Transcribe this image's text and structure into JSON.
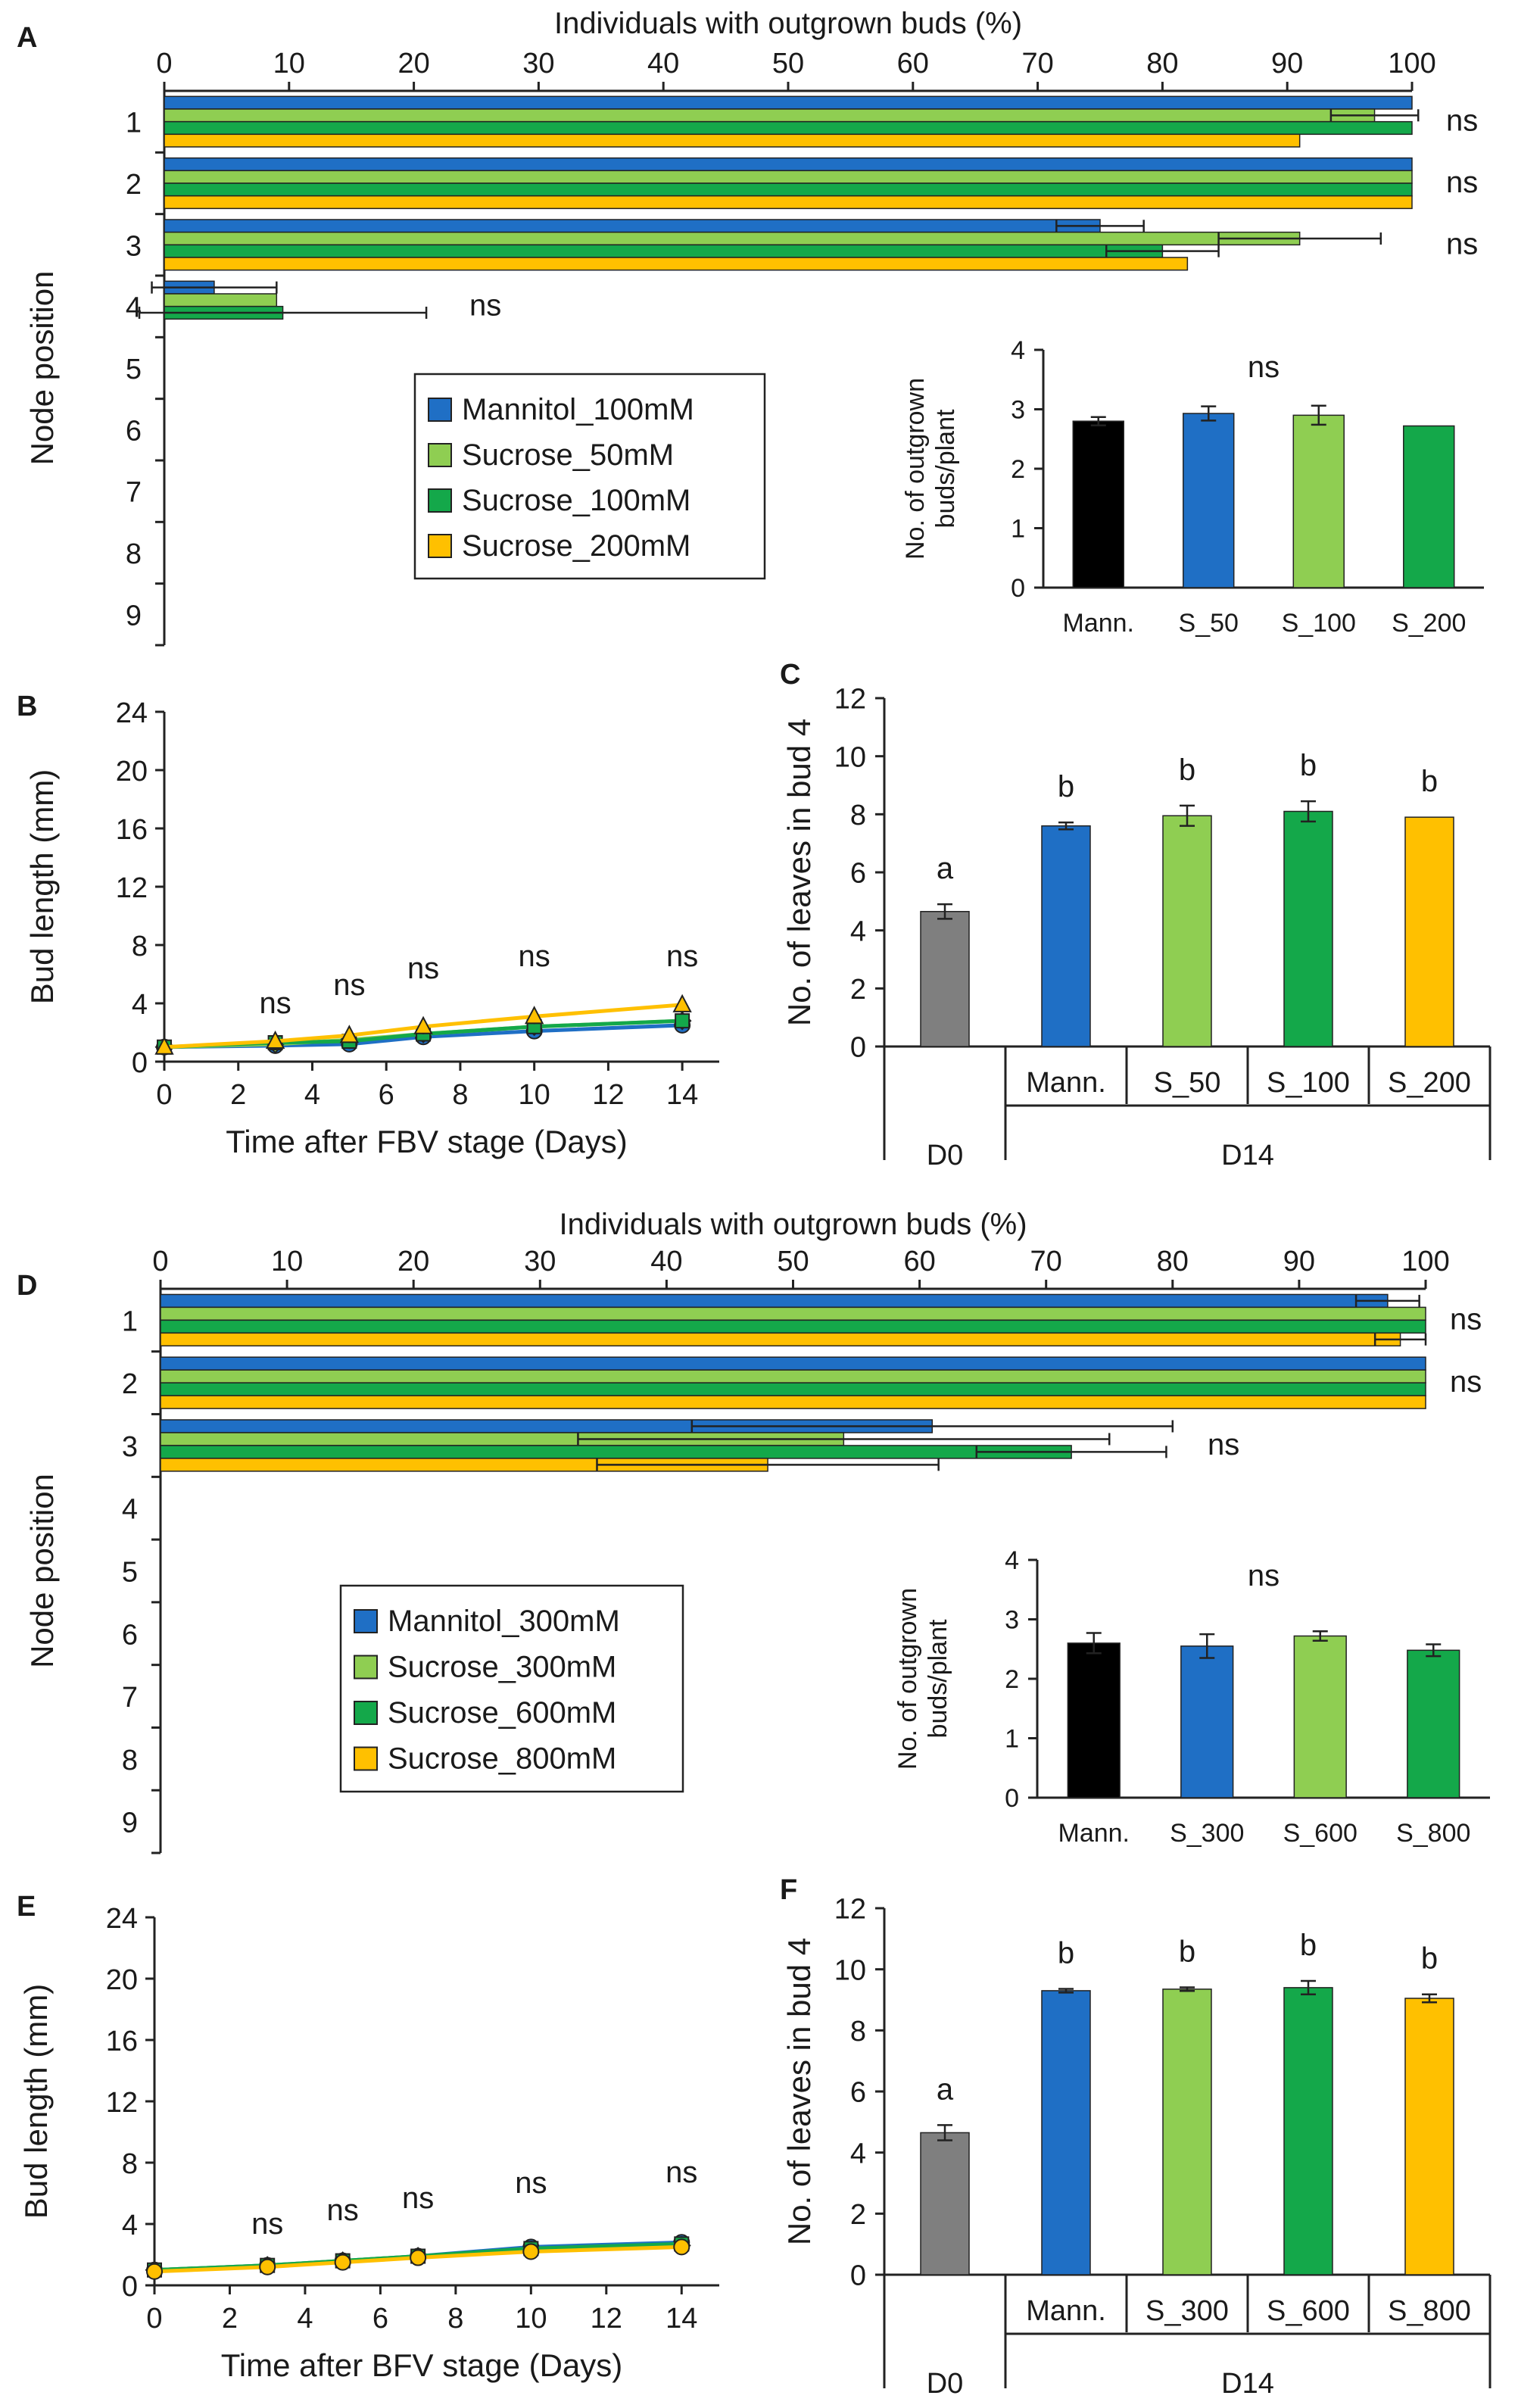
{
  "figure": {
    "panel_labels": [
      "A",
      "B",
      "C",
      "D",
      "E",
      "F"
    ]
  },
  "colors": {
    "Mannitol": "#1f6fc5",
    "Sucrose_low": "#8fce52",
    "Sucrose_mid": "#14a84a",
    "Sucrose_high": "#ffc000",
    "D0": "#7f7f7f",
    "axis": "#222222"
  },
  "chart_data": [
    {
      "id": "A",
      "type": "bar",
      "orientation": "horizontal",
      "title": "Individuals with outgrown buds (%)",
      "xlabel": "Individuals with outgrown buds (%)",
      "ylabel": "Node position",
      "xlim": [
        0,
        100
      ],
      "xticks": [
        "0",
        "10",
        "20",
        "30",
        "40",
        "50",
        "60",
        "70",
        "80",
        "90",
        "100"
      ],
      "categories": [
        "1",
        "2",
        "3",
        "4",
        "5",
        "6",
        "7",
        "8",
        "9"
      ],
      "series": [
        {
          "name": "Mannitol_100mM",
          "values": [
            100,
            100,
            75,
            4,
            0,
            0,
            0,
            0,
            0
          ],
          "errors": [
            0,
            0,
            3.5,
            5,
            0,
            0,
            0,
            0,
            0
          ]
        },
        {
          "name": "Sucrose_50mM",
          "values": [
            97,
            100,
            91,
            9,
            0,
            0,
            0,
            0,
            0
          ],
          "errors": [
            3.5,
            0,
            6.5,
            0,
            0,
            0,
            0,
            0,
            0
          ]
        },
        {
          "name": "Sucrose_100mM",
          "values": [
            100,
            100,
            80,
            9.5,
            0,
            0,
            0,
            0,
            0
          ],
          "errors": [
            0,
            0,
            4.5,
            11.5,
            0,
            0,
            0,
            0,
            0
          ]
        },
        {
          "name": "Sucrose_200mM",
          "values": [
            91,
            100,
            82,
            0,
            0,
            0,
            0,
            0,
            0
          ],
          "errors": [
            0,
            0,
            0,
            0,
            0,
            0,
            0,
            0,
            0
          ]
        }
      ],
      "annotations": [
        {
          "category": "1",
          "text": "ns"
        },
        {
          "category": "2",
          "text": "ns"
        },
        {
          "category": "3",
          "text": "ns"
        },
        {
          "category": "4",
          "text": "ns"
        }
      ],
      "legend": [
        "Mannitol_100mM",
        "Sucrose_50mM",
        "Sucrose_100mM",
        "Sucrose_200mM"
      ]
    },
    {
      "id": "A-inset",
      "type": "bar",
      "ylabel": "No. of outgrown buds/plant",
      "ylabel_lines": [
        "No. of outgrown",
        "buds/plant"
      ],
      "ylim": [
        0,
        4
      ],
      "yticks": [
        "0",
        "1",
        "2",
        "3",
        "4"
      ],
      "categories": [
        "Mann.",
        "S_50",
        "S_100",
        "S_200"
      ],
      "values": [
        2.8,
        2.93,
        2.9,
        2.72
      ],
      "errors": [
        0.07,
        0.12,
        0.16,
        0
      ],
      "annotation": "ns"
    },
    {
      "id": "B",
      "type": "line",
      "xlabel": "Time after FBV stage (Days)",
      "ylabel": "Bud length (mm)",
      "xlim": [
        0,
        15
      ],
      "ylim": [
        0,
        24
      ],
      "xticks": [
        "0",
        "2",
        "4",
        "6",
        "8",
        "10",
        "12",
        "14"
      ],
      "yticks": [
        "0",
        "4",
        "8",
        "12",
        "16",
        "20",
        "24"
      ],
      "x": [
        0,
        3,
        5,
        7,
        10,
        14
      ],
      "series": [
        {
          "name": "Mannitol_100mM",
          "values": [
            1.0,
            1.1,
            1.2,
            1.7,
            2.1,
            2.5
          ]
        },
        {
          "name": "Sucrose_50mM",
          "values": [
            1.0,
            1.2,
            1.5,
            1.9,
            2.4,
            2.8
          ]
        },
        {
          "name": "Sucrose_100mM",
          "values": [
            1.0,
            1.3,
            1.4,
            1.9,
            2.4,
            2.8
          ]
        },
        {
          "name": "Sucrose_200mM",
          "values": [
            1.0,
            1.4,
            1.8,
            2.4,
            3.1,
            3.9
          ]
        }
      ],
      "annotations": [
        "ns",
        "ns",
        "ns",
        "ns",
        "ns"
      ]
    },
    {
      "id": "C",
      "type": "bar",
      "ylabel": "No. of leaves in bud 4",
      "ylim": [
        0,
        12
      ],
      "yticks": [
        "0",
        "2",
        "4",
        "6",
        "8",
        "10",
        "12"
      ],
      "categories": [
        "D0",
        "Mann.",
        "S_50",
        "S_100",
        "S_200"
      ],
      "values": [
        4.65,
        7.6,
        7.95,
        8.1,
        7.9
      ],
      "errors": [
        0.25,
        0.12,
        0.35,
        0.35,
        0
      ],
      "letters": [
        "a",
        "b",
        "b",
        "b",
        "b"
      ],
      "groups": [
        {
          "label": "D0",
          "span": [
            0,
            0
          ]
        },
        {
          "label": "D14",
          "span": [
            1,
            4
          ]
        }
      ]
    },
    {
      "id": "D",
      "type": "bar",
      "orientation": "horizontal",
      "title": "Individuals with outgrown buds (%)",
      "xlabel": "Individuals with outgrown buds (%)",
      "ylabel": "Node position",
      "xlim": [
        0,
        100
      ],
      "xticks": [
        "0",
        "10",
        "20",
        "30",
        "40",
        "50",
        "60",
        "70",
        "80",
        "90",
        "100"
      ],
      "categories": [
        "1",
        "2",
        "3",
        "4",
        "5",
        "6",
        "7",
        "8",
        "9"
      ],
      "series": [
        {
          "name": "Mannitol_300mM",
          "values": [
            97,
            100,
            61,
            0,
            0,
            0,
            0,
            0,
            0
          ],
          "errors": [
            2.5,
            0,
            19,
            0,
            0,
            0,
            0,
            0,
            0
          ]
        },
        {
          "name": "Sucrose_300mM",
          "values": [
            100,
            100,
            54,
            0,
            0,
            0,
            0,
            0,
            0
          ],
          "errors": [
            0,
            0,
            21,
            0,
            0,
            0,
            0,
            0,
            0
          ]
        },
        {
          "name": "Sucrose_600mM",
          "values": [
            100,
            100,
            72,
            0,
            0,
            0,
            0,
            0,
            0
          ],
          "errors": [
            0,
            0,
            7.5,
            0,
            0,
            0,
            0,
            0,
            0
          ]
        },
        {
          "name": "Sucrose_800mM",
          "values": [
            98,
            100,
            48,
            0,
            0,
            0,
            0,
            0,
            0
          ],
          "errors": [
            2,
            0,
            13.5,
            0,
            0,
            0,
            0,
            0,
            0
          ]
        }
      ],
      "annotations": [
        {
          "category": "1",
          "text": "ns"
        },
        {
          "category": "2",
          "text": "ns"
        },
        {
          "category": "3",
          "text": "ns"
        }
      ],
      "legend": [
        "Mannitol_300mM",
        "Sucrose_300mM",
        "Sucrose_600mM",
        "Sucrose_800mM"
      ]
    },
    {
      "id": "D-inset",
      "type": "bar",
      "ylabel": "No. of outgrown buds/plant",
      "ylabel_lines": [
        "No. of outgrown",
        "buds/plant"
      ],
      "ylim": [
        0,
        4
      ],
      "yticks": [
        "0",
        "1",
        "2",
        "3",
        "4"
      ],
      "categories": [
        "Mann.",
        "S_300",
        "S_600",
        "S_800"
      ],
      "values": [
        2.6,
        2.55,
        2.72,
        2.48
      ],
      "errors": [
        0.17,
        0.2,
        0.08,
        0.1
      ],
      "annotation": "ns"
    },
    {
      "id": "E",
      "type": "line",
      "xlabel": "Time after BFV stage (Days)",
      "ylabel": "Bud length (mm)",
      "xlim": [
        0,
        15
      ],
      "ylim": [
        0,
        24
      ],
      "xticks": [
        "0",
        "2",
        "4",
        "6",
        "8",
        "10",
        "12",
        "14"
      ],
      "yticks": [
        "0",
        "4",
        "8",
        "12",
        "16",
        "20",
        "24"
      ],
      "x": [
        0,
        3,
        5,
        7,
        10,
        14
      ],
      "series": [
        {
          "name": "Mannitol_300mM",
          "values": [
            1.0,
            1.3,
            1.6,
            1.9,
            2.5,
            2.8
          ]
        },
        {
          "name": "Sucrose_300mM",
          "values": [
            1.0,
            1.3,
            1.6,
            1.9,
            2.3,
            2.6
          ]
        },
        {
          "name": "Sucrose_600mM",
          "values": [
            1.0,
            1.3,
            1.6,
            1.9,
            2.4,
            2.7
          ]
        },
        {
          "name": "Sucrose_800mM",
          "values": [
            0.9,
            1.2,
            1.5,
            1.8,
            2.2,
            2.5
          ]
        }
      ],
      "annotations": [
        "ns",
        "ns",
        "ns",
        "ns",
        "ns"
      ]
    },
    {
      "id": "F",
      "type": "bar",
      "ylabel": "No. of leaves in bud 4",
      "ylim": [
        0,
        12
      ],
      "yticks": [
        "0",
        "2",
        "4",
        "6",
        "8",
        "10",
        "12"
      ],
      "categories": [
        "D0",
        "Mann.",
        "S_300",
        "S_600",
        "S_800"
      ],
      "values": [
        4.65,
        9.3,
        9.35,
        9.4,
        9.05
      ],
      "errors": [
        0.25,
        0.06,
        0.06,
        0.22,
        0.13
      ],
      "letters": [
        "a",
        "b",
        "b",
        "b",
        "b"
      ],
      "groups": [
        {
          "label": "D0",
          "span": [
            0,
            0
          ]
        },
        {
          "label": "D14",
          "span": [
            1,
            4
          ]
        }
      ]
    }
  ]
}
